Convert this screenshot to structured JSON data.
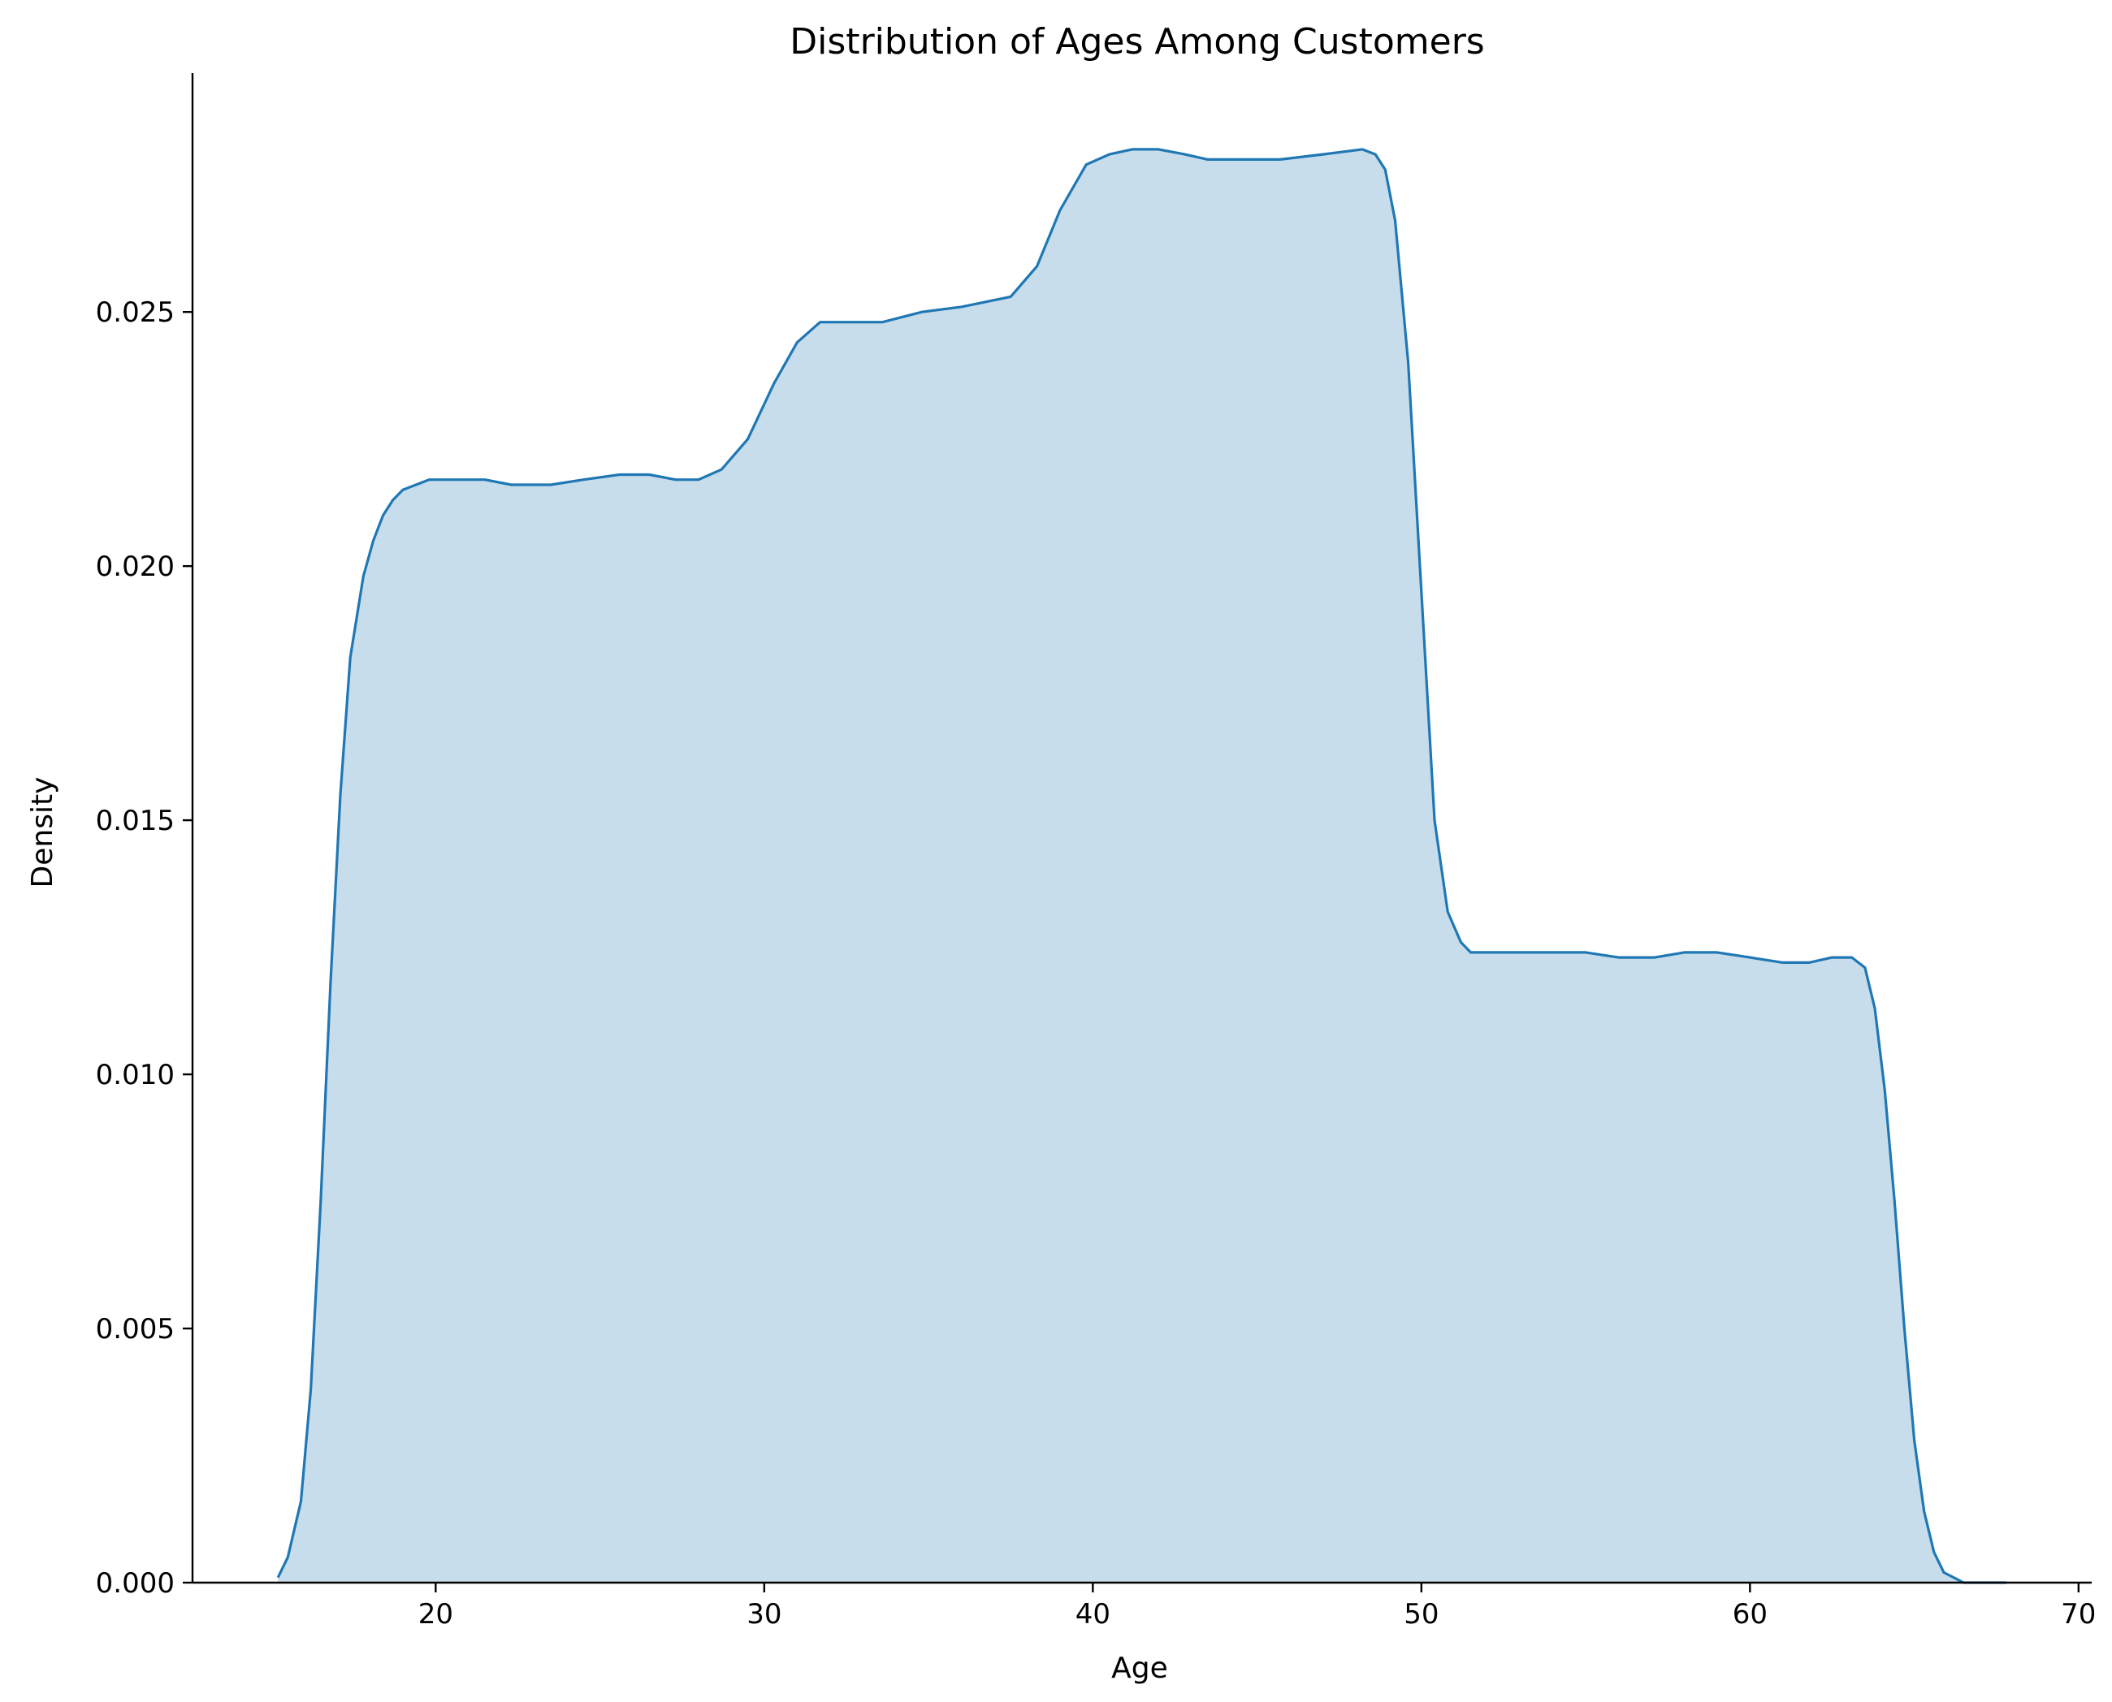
{
  "chart_data": {
    "type": "area",
    "title": "Distribution of Ages Among Customers",
    "xlabel": "Age",
    "ylabel": "Density",
    "xlim": [
      12.6,
      70.4
    ],
    "ylim": [
      0,
      0.0297
    ],
    "x_ticks": [
      {
        "value": 20,
        "label": "20"
      },
      {
        "value": 30,
        "label": "30"
      },
      {
        "value": 40,
        "label": "40"
      },
      {
        "value": 50,
        "label": "50"
      },
      {
        "value": 60,
        "label": "60"
      },
      {
        "value": 70,
        "label": "70"
      }
    ],
    "y_ticks": [
      {
        "value": 0.0,
        "label": "0.000"
      },
      {
        "value": 0.005,
        "label": "0.005"
      },
      {
        "value": 0.01,
        "label": "0.010"
      },
      {
        "value": 0.015,
        "label": "0.015"
      },
      {
        "value": 0.02,
        "label": "0.020"
      },
      {
        "value": 0.025,
        "label": "0.025"
      }
    ],
    "grid": false,
    "colors": {
      "line": "#1f77b4",
      "fill": "#1f77b4",
      "fill_opacity": 0.25,
      "axis": "#000000"
    },
    "series": [
      {
        "x": [
          15.2,
          15.5,
          15.9,
          16.2,
          16.5,
          16.8,
          17.1,
          17.4,
          17.8,
          18.1,
          18.4,
          18.7,
          19.0,
          19.4,
          19.8,
          20.3,
          20.8,
          21.5,
          22.3,
          23.5,
          24.5,
          25.6,
          26.5,
          27.3,
          28.0,
          28.7,
          29.5,
          30.3,
          31.0,
          31.7,
          32.5,
          33.6,
          34.8,
          36.0,
          37.5,
          38.3,
          39.0,
          39.8,
          40.5,
          41.2,
          42.0,
          42.8,
          43.5,
          44.5,
          45.7,
          47.0,
          48.2,
          48.6,
          48.9,
          49.2,
          49.6,
          50.0,
          50.4,
          50.8,
          51.2,
          51.5,
          51.8,
          52.1,
          52.4,
          52.8,
          53.2,
          54.0,
          55.0,
          56.0,
          57.1,
          58.0,
          59.0,
          60.0,
          61.0,
          61.8,
          62.5,
          63.1,
          63.5,
          63.8,
          64.1,
          64.4,
          64.7,
          65.0,
          65.3,
          65.6,
          65.9,
          66.2,
          66.5,
          66.8,
          67.1,
          67.5,
          67.8
        ],
        "y": [
          0.0001,
          0.0005,
          0.0016,
          0.0038,
          0.0075,
          0.0118,
          0.0155,
          0.0182,
          0.0198,
          0.0205,
          0.021,
          0.0213,
          0.0215,
          0.0216,
          0.0217,
          0.0217,
          0.0217,
          0.0217,
          0.0216,
          0.0216,
          0.0217,
          0.0218,
          0.0218,
          0.0217,
          0.0217,
          0.0219,
          0.0225,
          0.0236,
          0.0244,
          0.0248,
          0.0248,
          0.0248,
          0.025,
          0.0251,
          0.0253,
          0.0259,
          0.027,
          0.0279,
          0.0281,
          0.0282,
          0.0282,
          0.0281,
          0.028,
          0.028,
          0.028,
          0.0281,
          0.0282,
          0.0281,
          0.0278,
          0.0268,
          0.024,
          0.0195,
          0.015,
          0.0132,
          0.0126,
          0.0124,
          0.0124,
          0.0124,
          0.0124,
          0.0124,
          0.0124,
          0.0124,
          0.0124,
          0.0123,
          0.0123,
          0.0124,
          0.0124,
          0.0123,
          0.0122,
          0.0122,
          0.0123,
          0.0123,
          0.0121,
          0.0113,
          0.0097,
          0.0075,
          0.005,
          0.0028,
          0.0014,
          0.0006,
          0.0002,
          0.0001,
          0.0,
          0.0,
          0.0,
          0.0,
          0.0
        ]
      }
    ]
  }
}
